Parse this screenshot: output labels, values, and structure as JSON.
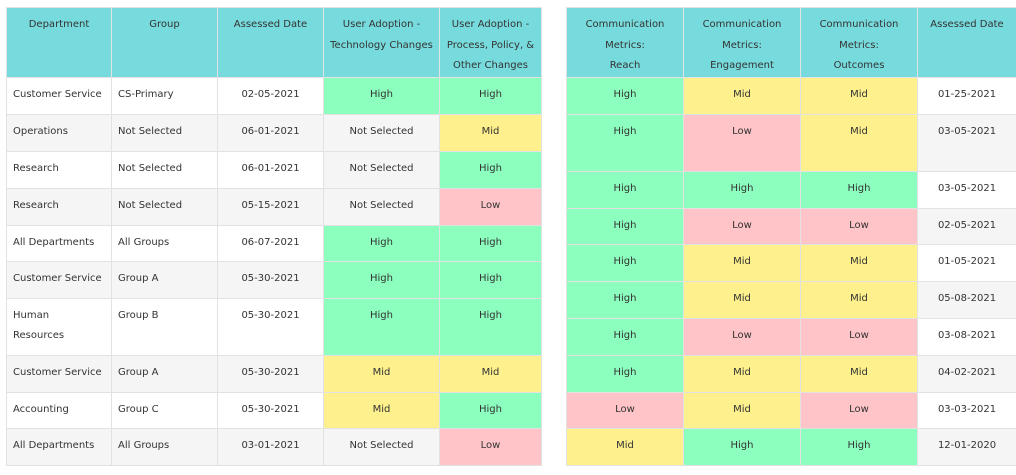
{
  "left_table": {
    "headers": {
      "department": "Department",
      "group": "Group",
      "assessed_date": "Assessed Date",
      "ua_tech_line1": "User Adoption -",
      "ua_tech_line2": "Technology Changes",
      "ua_proc_line1": "User Adoption -",
      "ua_proc_line2": "Process, Policy, &",
      "ua_proc_line3": "Other Changes"
    },
    "rows": [
      {
        "department": "Customer Service",
        "group": "CS-Primary",
        "date": "02-05-2021",
        "tech": "High",
        "proc": "High"
      },
      {
        "department": "Operations",
        "group": "Not Selected",
        "date": "06-01-2021",
        "tech": "Not Selected",
        "proc": "Mid"
      },
      {
        "department": "Research",
        "group": "Not Selected",
        "date": "06-01-2021",
        "tech": "Not Selected",
        "proc": "High"
      },
      {
        "department": "Research",
        "group": "Not Selected",
        "date": "05-15-2021",
        "tech": "Not Selected",
        "proc": "Low"
      },
      {
        "department": "All Departments",
        "group": "All Groups",
        "date": "06-07-2021",
        "tech": "High",
        "proc": "High"
      },
      {
        "department": "Customer Service",
        "group": "Group A",
        "date": "05-30-2021",
        "tech": "High",
        "proc": "High"
      },
      {
        "department": "Human",
        "department2": "Resources",
        "group": "Group B",
        "date": "05-30-2021",
        "tech": "High",
        "proc": "High"
      },
      {
        "department": "Customer Service",
        "group": "Group A",
        "date": "05-30-2021",
        "tech": "Mid",
        "proc": "Mid"
      },
      {
        "department": "Accounting",
        "group": "Group C",
        "date": "05-30-2021",
        "tech": "Mid",
        "proc": "High"
      },
      {
        "department": "All Departments",
        "group": "All Groups",
        "date": "03-01-2021",
        "tech": "Not Selected",
        "proc": "Low"
      }
    ]
  },
  "right_table": {
    "headers": {
      "reach_line1": "Communication",
      "reach_line2": "Metrics:",
      "reach_line3": "Reach",
      "eng_line1": "Communication",
      "eng_line2": "Metrics:",
      "eng_line3": "Engagement",
      "out_line1": "Communication",
      "out_line2": "Metrics:",
      "out_line3": "Outcomes",
      "assessed_date": "Assessed Date"
    },
    "rows": [
      {
        "reach": "High",
        "engagement": "Mid",
        "outcomes": "Mid",
        "date": "01-25-2021"
      },
      {
        "reach": "High",
        "engagement": "Low",
        "outcomes": "Mid",
        "date": "03-05-2021"
      },
      {
        "reach": "High",
        "engagement": "High",
        "outcomes": "High",
        "date": "03-05-2021"
      },
      {
        "reach": "High",
        "engagement": "Low",
        "outcomes": "Low",
        "date": "02-05-2021"
      },
      {
        "reach": "High",
        "engagement": "Mid",
        "outcomes": "Mid",
        "date": "01-05-2021"
      },
      {
        "reach": "High",
        "engagement": "Mid",
        "outcomes": "Mid",
        "date": "05-08-2021"
      },
      {
        "reach": "High",
        "engagement": "Low",
        "outcomes": "Low",
        "date": "03-08-2021"
      },
      {
        "reach": "High",
        "engagement": "Mid",
        "outcomes": "Mid",
        "date": "04-02-2021"
      },
      {
        "reach": "Low",
        "engagement": "Mid",
        "outcomes": "Low",
        "date": "03-03-2021"
      },
      {
        "reach": "Mid",
        "engagement": "High",
        "outcomes": "High",
        "date": "12-01-2020"
      }
    ]
  },
  "colors": {
    "header_bg": "#77dbdd",
    "high": "#8cffbe",
    "mid": "#fdf08d",
    "low": "#ffc4c8"
  }
}
